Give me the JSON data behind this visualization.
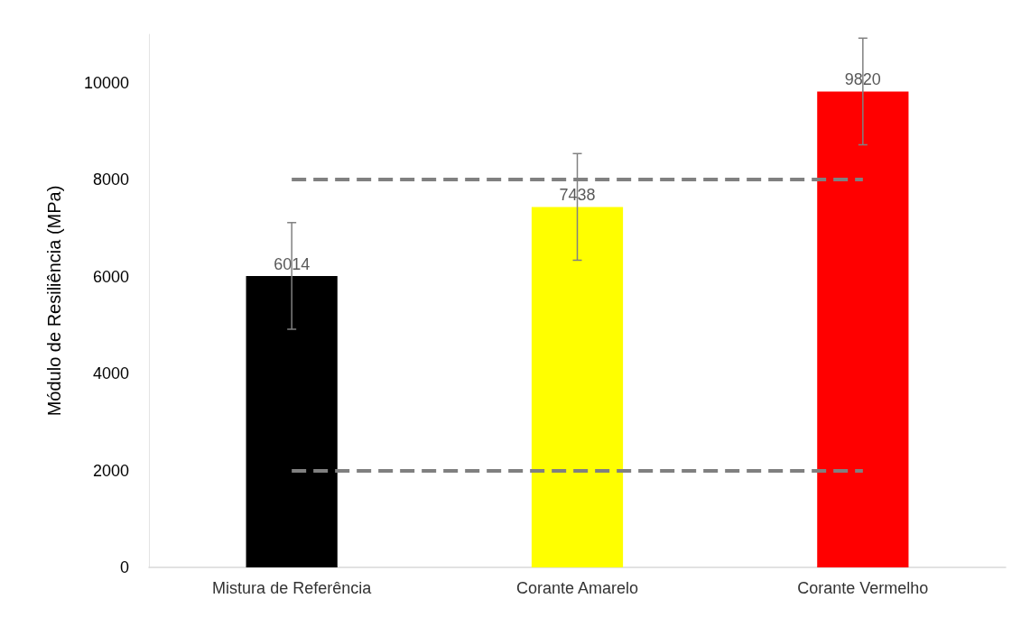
{
  "chart_data": {
    "type": "bar",
    "ylabel": "Módulo de Resiliência (MPa)",
    "categories": [
      "Mistura de Referência",
      "Corante Amarelo",
      "Corante Vermelho"
    ],
    "values": [
      6014,
      7438,
      9820
    ],
    "colors": [
      "#000000",
      "#ffff00",
      "#ff0000"
    ],
    "errors": [
      1100,
      1100,
      1100
    ],
    "data_labels": true,
    "ylim": [
      0,
      11000
    ],
    "yticks": [
      0,
      2000,
      4000,
      6000,
      8000,
      10000
    ],
    "grid": false,
    "ref_lines": [
      {
        "axis": "y",
        "value": 2000,
        "color": "#808080",
        "line_style": "dashed"
      },
      {
        "axis": "y",
        "value": 8000,
        "color": "#808080",
        "line_style": "dashed"
      }
    ]
  }
}
